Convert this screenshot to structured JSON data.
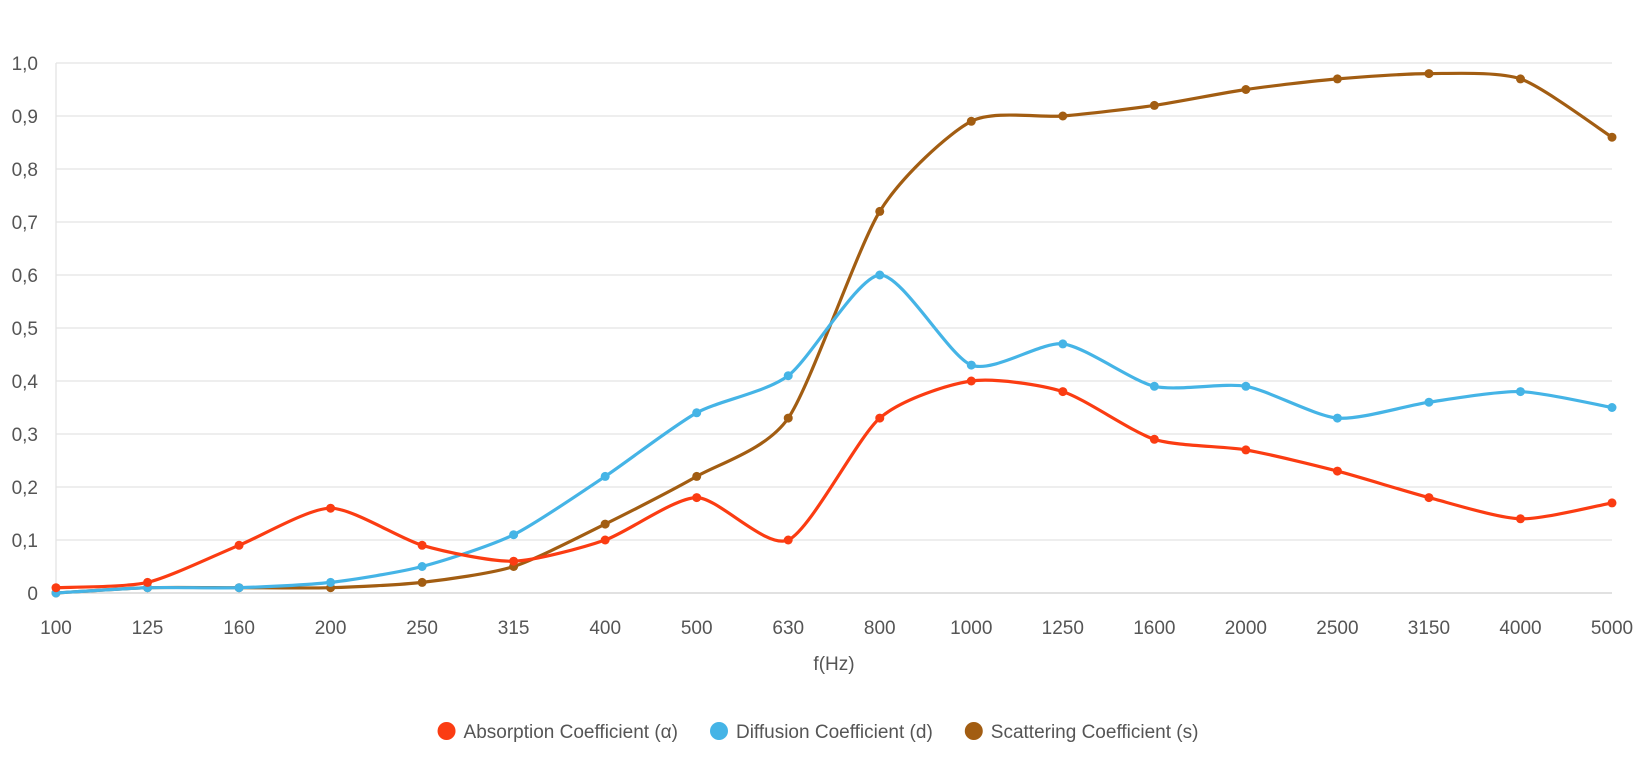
{
  "chart_data": {
    "type": "line",
    "title": "",
    "xlabel": "f(Hz)",
    "ylabel": "",
    "categories": [
      "100",
      "125",
      "160",
      "200",
      "250",
      "315",
      "400",
      "500",
      "630",
      "800",
      "1000",
      "1250",
      "1600",
      "2000",
      "2500",
      "3150",
      "4000",
      "5000"
    ],
    "ylim": [
      0,
      1.0
    ],
    "yticks": [
      "0",
      "0,1",
      "0,2",
      "0,3",
      "0,4",
      "0,5",
      "0,6",
      "0,7",
      "0,8",
      "0,9",
      "1,0"
    ],
    "grid": true,
    "legend_position": "bottom",
    "series": [
      {
        "name": "Absorption Coefficient (α)",
        "color": "#fb3c12",
        "values": [
          0.01,
          0.02,
          0.09,
          0.16,
          0.09,
          0.06,
          0.1,
          0.18,
          0.1,
          0.33,
          0.4,
          0.38,
          0.29,
          0.27,
          0.23,
          0.18,
          0.14,
          0.17
        ]
      },
      {
        "name": "Diffusion Coefficient (d)",
        "color": "#45b4e6",
        "values": [
          0.0,
          0.01,
          0.01,
          0.02,
          0.05,
          0.11,
          0.22,
          0.34,
          0.41,
          0.6,
          0.43,
          0.47,
          0.39,
          0.39,
          0.33,
          0.36,
          0.38,
          0.35
        ]
      },
      {
        "name": "Scattering Coefficient (s)",
        "color": "#a25d12",
        "values": [
          0.0,
          0.01,
          0.01,
          0.01,
          0.02,
          0.05,
          0.13,
          0.22,
          0.33,
          0.72,
          0.89,
          0.9,
          0.92,
          0.95,
          0.97,
          0.98,
          0.97,
          0.86
        ]
      }
    ]
  }
}
